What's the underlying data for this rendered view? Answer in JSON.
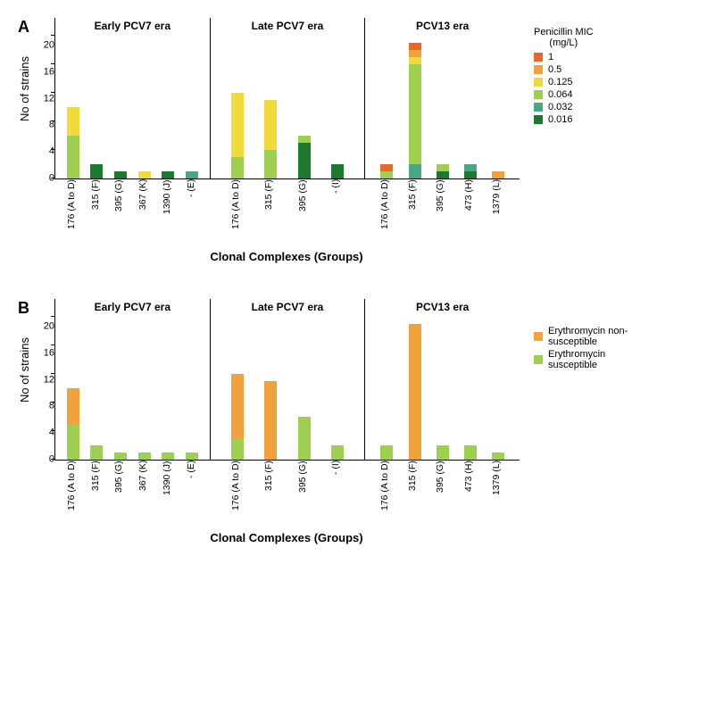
{
  "colors": {
    "mic_1": "#e8682c",
    "mic_0_5": "#f2a23c",
    "mic_0_125": "#f2d93c",
    "mic_0_064": "#9ecf4e",
    "mic_0_032": "#4aa789",
    "mic_0_016": "#1c7a2e",
    "ery_ns": "#f2a23c",
    "ery_s": "#9ecf4e",
    "axis": "#000000",
    "background": "#ffffff"
  },
  "panelA": {
    "label": "A",
    "y_label": "No of strains",
    "x_label": "Clonal Complexes (Groups)",
    "ylim": [
      0,
      20
    ],
    "yticks": [
      0,
      4,
      8,
      12,
      16,
      20
    ],
    "legend_title": "Penicillin MIC\n(mg/L)",
    "legend": [
      {
        "label": "1",
        "color_key": "mic_1"
      },
      {
        "label": "0.5",
        "color_key": "mic_0_5"
      },
      {
        "label": "0.125",
        "color_key": "mic_0_125"
      },
      {
        "label": "0.064",
        "color_key": "mic_0_064"
      },
      {
        "label": "0.032",
        "color_key": "mic_0_032"
      },
      {
        "label": "0.016",
        "color_key": "mic_0_016"
      }
    ],
    "eras": [
      {
        "title": "Early PCV7 era",
        "bars": [
          {
            "label": "176 (A to D)",
            "segments": [
              {
                "c": "mic_0_064",
                "v": 6
              },
              {
                "c": "mic_0_125",
                "v": 4
              }
            ]
          },
          {
            "label": "315 (F)",
            "segments": [
              {
                "c": "mic_0_016",
                "v": 2
              }
            ]
          },
          {
            "label": "395 (G)",
            "segments": [
              {
                "c": "mic_0_016",
                "v": 1
              }
            ]
          },
          {
            "label": "367 (K)",
            "segments": [
              {
                "c": "mic_0_125",
                "v": 1
              }
            ]
          },
          {
            "label": "1390 (J)",
            "segments": [
              {
                "c": "mic_0_016",
                "v": 1
              }
            ]
          },
          {
            "label": "- (E)",
            "segments": [
              {
                "c": "mic_0_032",
                "v": 1
              }
            ]
          }
        ]
      },
      {
        "title": "Late PCV7 era",
        "bars": [
          {
            "label": "176 (A to D)",
            "segments": [
              {
                "c": "mic_0_064",
                "v": 3
              },
              {
                "c": "mic_0_125",
                "v": 9
              }
            ]
          },
          {
            "label": "315 (F)",
            "segments": [
              {
                "c": "mic_0_064",
                "v": 4
              },
              {
                "c": "mic_0_125",
                "v": 7
              }
            ]
          },
          {
            "label": "395 (G)",
            "segments": [
              {
                "c": "mic_0_016",
                "v": 5
              },
              {
                "c": "mic_0_064",
                "v": 1
              }
            ]
          },
          {
            "label": "- (I)",
            "segments": [
              {
                "c": "mic_0_016",
                "v": 2
              }
            ]
          }
        ]
      },
      {
        "title": "PCV13 era",
        "bars": [
          {
            "label": "176 (A to D)",
            "segments": [
              {
                "c": "mic_0_064",
                "v": 1
              },
              {
                "c": "mic_1",
                "v": 1
              }
            ]
          },
          {
            "label": "315 (F)",
            "segments": [
              {
                "c": "mic_0_032",
                "v": 2
              },
              {
                "c": "mic_0_064",
                "v": 14
              },
              {
                "c": "mic_0_125",
                "v": 1
              },
              {
                "c": "mic_0_5",
                "v": 1
              },
              {
                "c": "mic_1",
                "v": 1
              }
            ]
          },
          {
            "label": "395 (G)",
            "segments": [
              {
                "c": "mic_0_016",
                "v": 1
              },
              {
                "c": "mic_0_064",
                "v": 1
              }
            ]
          },
          {
            "label": "473 (H)",
            "segments": [
              {
                "c": "mic_0_016",
                "v": 1
              },
              {
                "c": "mic_0_032",
                "v": 1
              }
            ]
          },
          {
            "label": "1379 (L)",
            "segments": [
              {
                "c": "mic_0_5",
                "v": 1
              }
            ]
          }
        ]
      }
    ]
  },
  "panelB": {
    "label": "B",
    "y_label": "No of strains",
    "x_label": "Clonal Complexes (Groups)",
    "ylim": [
      0,
      20
    ],
    "yticks": [
      0,
      4,
      8,
      12,
      16,
      20
    ],
    "legend": [
      {
        "label": "Erythromycin non-susceptible",
        "color_key": "ery_ns"
      },
      {
        "label": "Erythromycin susceptible",
        "color_key": "ery_s"
      }
    ],
    "eras": [
      {
        "title": "Early PCV7 era",
        "bars": [
          {
            "label": "176 (A to D)",
            "segments": [
              {
                "c": "ery_s",
                "v": 5
              },
              {
                "c": "ery_ns",
                "v": 5
              }
            ]
          },
          {
            "label": "315 (F)",
            "segments": [
              {
                "c": "ery_s",
                "v": 2
              }
            ]
          },
          {
            "label": "395 (G)",
            "segments": [
              {
                "c": "ery_s",
                "v": 1
              }
            ]
          },
          {
            "label": "367 (K)",
            "segments": [
              {
                "c": "ery_s",
                "v": 1
              }
            ]
          },
          {
            "label": "1390 (J)",
            "segments": [
              {
                "c": "ery_s",
                "v": 1
              }
            ]
          },
          {
            "label": "- (E)",
            "segments": [
              {
                "c": "ery_s",
                "v": 1
              }
            ]
          }
        ]
      },
      {
        "title": "Late PCV7 era",
        "bars": [
          {
            "label": "176 (A to D)",
            "segments": [
              {
                "c": "ery_s",
                "v": 3
              },
              {
                "c": "ery_ns",
                "v": 9
              }
            ]
          },
          {
            "label": "315 (F)",
            "segments": [
              {
                "c": "ery_ns",
                "v": 11
              }
            ]
          },
          {
            "label": "395 (G)",
            "segments": [
              {
                "c": "ery_s",
                "v": 6
              }
            ]
          },
          {
            "label": "- (I)",
            "segments": [
              {
                "c": "ery_s",
                "v": 2
              }
            ]
          }
        ]
      },
      {
        "title": "PCV13 era",
        "bars": [
          {
            "label": "176 (A to D)",
            "segments": [
              {
                "c": "ery_s",
                "v": 2
              }
            ]
          },
          {
            "label": "315 (F)",
            "segments": [
              {
                "c": "ery_ns",
                "v": 19
              }
            ]
          },
          {
            "label": "395 (G)",
            "segments": [
              {
                "c": "ery_s",
                "v": 2
              }
            ]
          },
          {
            "label": "473 (H)",
            "segments": [
              {
                "c": "ery_s",
                "v": 2
              }
            ]
          },
          {
            "label": "1379 (L)",
            "segments": [
              {
                "c": "ery_s",
                "v": 1
              }
            ]
          }
        ]
      }
    ]
  }
}
